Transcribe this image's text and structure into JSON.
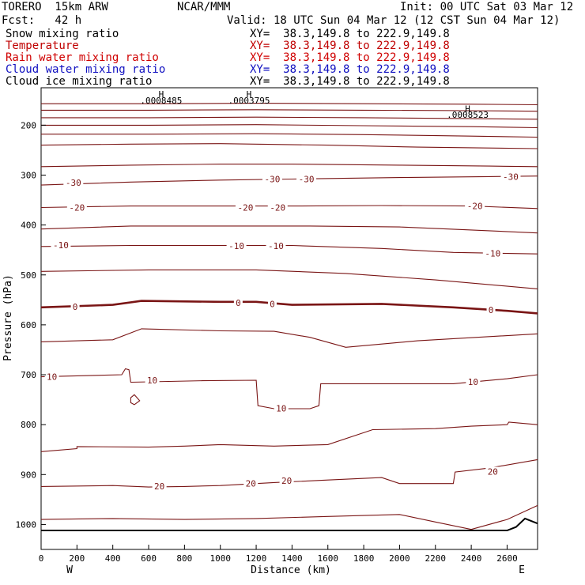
{
  "header": {
    "model": "TORERO  15km ARW",
    "center": "NCAR/MMM",
    "init": "Init: 00 UTC Sat 03 Mar 12",
    "fcst": "Fcst:   42 h",
    "valid": "Valid: 18 UTC Sun 04 Mar 12 (12 CST Sun 04 Mar 12)"
  },
  "variables": [
    {
      "label": "Snow mixing ratio",
      "xy": "XY=  38.3,149.8 to 222.9,149.8",
      "color": "#000000"
    },
    {
      "label": "Temperature",
      "xy": "XY=  38.3,149.8 to 222.9,149.8",
      "color": "#c00000"
    },
    {
      "label": "Rain water mixing ratio",
      "xy": "XY=  38.3,149.8 to 222.9,149.8",
      "color": "#d00000"
    },
    {
      "label": "Cloud water mixing ratio",
      "xy": "XY=  38.3,149.8 to 222.9,149.8",
      "color": "#1010c0"
    },
    {
      "label": "Cloud ice mixing ratio",
      "xy": "XY=  38.3,149.8 to 222.9,149.8",
      "color": "#000000"
    }
  ],
  "chart_data": {
    "type": "contour",
    "xlabel": "Distance (km)",
    "ylabel": "Pressure (hPa)",
    "xlim": [
      0,
      2770
    ],
    "ylim": [
      1050,
      125
    ],
    "x_ticks": [
      0,
      200,
      400,
      600,
      800,
      1000,
      1200,
      1400,
      1600,
      1800,
      2000,
      2200,
      2400,
      2600
    ],
    "y_ticks": [
      200,
      300,
      400,
      500,
      600,
      700,
      800,
      900,
      1000
    ],
    "x_end_labels": [
      "W",
      "E"
    ],
    "contour_color": "#7a1515",
    "isotherm_labels": [
      {
        "text": "-30",
        "x": 180,
        "p": 315
      },
      {
        "text": "-30",
        "x": 1290,
        "p": 308
      },
      {
        "text": "-30",
        "x": 1480,
        "p": 308
      },
      {
        "text": "-30",
        "x": 2620,
        "p": 303
      },
      {
        "text": "-20",
        "x": 200,
        "p": 365
      },
      {
        "text": "-20",
        "x": 1140,
        "p": 365
      },
      {
        "text": "-20",
        "x": 1320,
        "p": 365
      },
      {
        "text": "-20",
        "x": 2420,
        "p": 362
      },
      {
        "text": "-10",
        "x": 110,
        "p": 440
      },
      {
        "text": "-10",
        "x": 1090,
        "p": 442
      },
      {
        "text": "-10",
        "x": 1310,
        "p": 442
      },
      {
        "text": "-10",
        "x": 2520,
        "p": 457
      },
      {
        "text": "0",
        "x": 190,
        "p": 564
      },
      {
        "text": "0",
        "x": 1100,
        "p": 556
      },
      {
        "text": "0",
        "x": 1290,
        "p": 558
      },
      {
        "text": "0",
        "x": 2510,
        "p": 570
      },
      {
        "text": "10",
        "x": 60,
        "p": 704
      },
      {
        "text": "10",
        "x": 620,
        "p": 711
      },
      {
        "text": "10",
        "x": 1340,
        "p": 767
      },
      {
        "text": "10",
        "x": 2410,
        "p": 714
      },
      {
        "text": "20",
        "x": 660,
        "p": 923
      },
      {
        "text": "20",
        "x": 1170,
        "p": 918
      },
      {
        "text": "20",
        "x": 1370,
        "p": 912
      },
      {
        "text": "20",
        "x": 2520,
        "p": 894
      }
    ],
    "max_labels": [
      {
        "text": "H",
        "x": 670,
        "p": 138
      },
      {
        "text": ".0008485",
        "x": 670,
        "p": 150
      },
      {
        "text": "H",
        "x": 1160,
        "p": 138
      },
      {
        "text": ".0003795",
        "x": 1160,
        "p": 150
      },
      {
        "text": "H",
        "x": 2380,
        "p": 167
      },
      {
        "text": ".0008523",
        "x": 2380,
        "p": 179
      }
    ],
    "contours": [
      {
        "level": "-60",
        "points": [
          [
            0,
            157
          ],
          [
            600,
            157
          ],
          [
            1200,
            156
          ],
          [
            1800,
            157
          ],
          [
            2400,
            158
          ],
          [
            2770,
            159
          ]
        ]
      },
      {
        "level": "-55",
        "points": [
          [
            0,
            170
          ],
          [
            600,
            170
          ],
          [
            1200,
            169
          ],
          [
            1800,
            170
          ],
          [
            2400,
            171
          ],
          [
            2770,
            172
          ]
        ]
      },
      {
        "level": "-50",
        "points": [
          [
            0,
            185
          ],
          [
            600,
            185
          ],
          [
            1200,
            184
          ],
          [
            1800,
            185
          ],
          [
            2400,
            187
          ],
          [
            2770,
            188
          ]
        ]
      },
      {
        "level": "-45",
        "points": [
          [
            0,
            200
          ],
          [
            600,
            200
          ],
          [
            1200,
            199
          ],
          [
            1800,
            201
          ],
          [
            2400,
            203
          ],
          [
            2770,
            205
          ]
        ]
      },
      {
        "level": "-40",
        "points": [
          [
            0,
            218
          ],
          [
            600,
            218
          ],
          [
            1200,
            217
          ],
          [
            1800,
            219
          ],
          [
            2400,
            222
          ],
          [
            2770,
            224
          ]
        ]
      },
      {
        "level": "-35",
        "points": [
          [
            0,
            240
          ],
          [
            500,
            238
          ],
          [
            1000,
            237
          ],
          [
            1600,
            240
          ],
          [
            2100,
            244
          ],
          [
            2770,
            247
          ]
        ]
      },
      {
        "level": "-30",
        "points": [
          [
            0,
            283
          ],
          [
            500,
            280
          ],
          [
            1000,
            278
          ],
          [
            1400,
            278
          ],
          [
            2000,
            280
          ],
          [
            2500,
            282
          ],
          [
            2770,
            283
          ]
        ]
      },
      {
        "level": "-25",
        "points": [
          [
            0,
            320
          ],
          [
            500,
            314
          ],
          [
            1000,
            310
          ],
          [
            1400,
            308
          ],
          [
            2000,
            305
          ],
          [
            2500,
            303
          ],
          [
            2770,
            302
          ]
        ]
      },
      {
        "level": "-20",
        "points": [
          [
            0,
            365
          ],
          [
            500,
            362
          ],
          [
            900,
            362
          ],
          [
            1400,
            362
          ],
          [
            1900,
            361
          ],
          [
            2400,
            362
          ],
          [
            2770,
            367
          ]
        ]
      },
      {
        "level": "-15",
        "points": [
          [
            0,
            408
          ],
          [
            500,
            402
          ],
          [
            1000,
            402
          ],
          [
            1500,
            402
          ],
          [
            2000,
            404
          ],
          [
            2400,
            410
          ],
          [
            2770,
            416
          ]
        ]
      },
      {
        "level": "-10",
        "points": [
          [
            0,
            443
          ],
          [
            500,
            441
          ],
          [
            1000,
            441
          ],
          [
            1400,
            441
          ],
          [
            1900,
            447
          ],
          [
            2300,
            455
          ],
          [
            2770,
            458
          ]
        ]
      },
      {
        "level": "-5",
        "points": [
          [
            0,
            493
          ],
          [
            600,
            490
          ],
          [
            1200,
            490
          ],
          [
            1700,
            497
          ],
          [
            2200,
            510
          ],
          [
            2770,
            528
          ]
        ]
      },
      {
        "level": "0",
        "bold": true,
        "points": [
          [
            0,
            565
          ],
          [
            400,
            560
          ],
          [
            560,
            552
          ],
          [
            1000,
            554
          ],
          [
            1200,
            554
          ],
          [
            1400,
            560
          ],
          [
            1900,
            558
          ],
          [
            2300,
            565
          ],
          [
            2600,
            572
          ],
          [
            2770,
            577
          ]
        ]
      },
      {
        "level": "5",
        "points": [
          [
            0,
            634
          ],
          [
            400,
            630
          ],
          [
            560,
            608
          ],
          [
            1000,
            612
          ],
          [
            1300,
            613
          ],
          [
            1500,
            625
          ],
          [
            1700,
            645
          ],
          [
            2100,
            632
          ],
          [
            2770,
            618
          ]
        ]
      },
      {
        "level": "10",
        "points": [
          [
            0,
            704
          ],
          [
            450,
            700
          ],
          [
            470,
            688
          ],
          [
            490,
            690
          ],
          [
            500,
            715
          ],
          [
            900,
            712
          ],
          [
            1200,
            711
          ],
          [
            1210,
            762
          ],
          [
            1300,
            768
          ],
          [
            1500,
            768
          ],
          [
            1550,
            762
          ],
          [
            1560,
            718
          ],
          [
            1900,
            718
          ],
          [
            2300,
            718
          ],
          [
            2600,
            708
          ],
          [
            2770,
            700
          ]
        ]
      },
      {
        "level": "15",
        "points": [
          [
            0,
            854
          ],
          [
            200,
            848
          ],
          [
            200,
            844
          ],
          [
            600,
            845
          ],
          [
            800,
            843
          ],
          [
            1000,
            840
          ],
          [
            1300,
            843
          ],
          [
            1600,
            840
          ],
          [
            1850,
            810
          ],
          [
            2200,
            808
          ],
          [
            2400,
            803
          ],
          [
            2600,
            800
          ],
          [
            2610,
            795
          ],
          [
            2770,
            800
          ]
        ]
      },
      {
        "level": "20",
        "points": [
          [
            0,
            924
          ],
          [
            400,
            922
          ],
          [
            600,
            925
          ],
          [
            800,
            924
          ],
          [
            1000,
            922
          ],
          [
            1300,
            916
          ],
          [
            1600,
            911
          ],
          [
            1900,
            906
          ],
          [
            2000,
            918
          ],
          [
            2300,
            918
          ],
          [
            2310,
            895
          ],
          [
            2500,
            887
          ],
          [
            2770,
            870
          ]
        ]
      },
      {
        "level": "25",
        "points": [
          [
            0,
            990
          ],
          [
            400,
            988
          ],
          [
            800,
            990
          ],
          [
            1200,
            988
          ],
          [
            1600,
            984
          ],
          [
            2000,
            980
          ],
          [
            2200,
            995
          ],
          [
            2400,
            1010
          ],
          [
            2600,
            990
          ],
          [
            2770,
            962
          ]
        ]
      }
    ],
    "closed_contours": [
      {
        "level": "10",
        "points": [
          [
            500,
            746
          ],
          [
            520,
            740
          ],
          [
            550,
            752
          ],
          [
            520,
            760
          ],
          [
            500,
            756
          ],
          [
            500,
            746
          ]
        ]
      }
    ],
    "terrain": [
      [
        0,
        1012
      ],
      [
        2600,
        1012
      ],
      [
        2650,
        1005
      ],
      [
        2700,
        988
      ],
      [
        2770,
        998
      ]
    ]
  }
}
